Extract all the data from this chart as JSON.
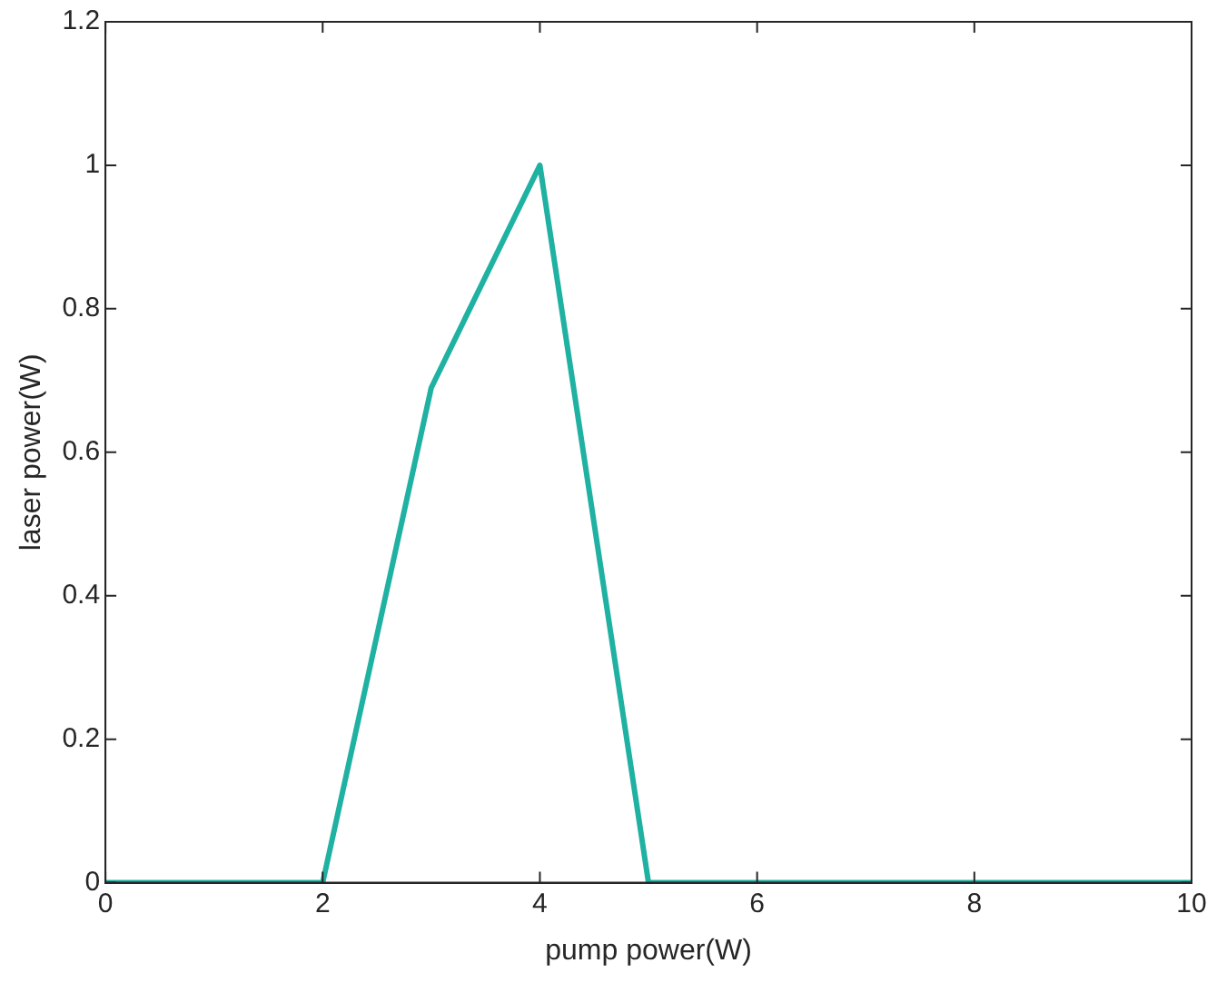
{
  "chart_data": {
    "type": "line",
    "xlabel": "pump power(W)",
    "ylabel": "laser power(W)",
    "x": [
      0,
      1,
      2,
      3,
      4,
      5,
      6,
      7,
      8,
      9,
      10
    ],
    "series": [
      {
        "color": "#1fb1a1",
        "values": [
          0,
          0,
          0,
          0.69,
          1,
          0,
          0,
          0,
          0,
          0,
          0
        ]
      }
    ],
    "xlim": [
      0,
      10
    ],
    "xticks": [
      0,
      2,
      4,
      6,
      8,
      10
    ],
    "ylim": [
      0,
      1.2
    ],
    "yticks": [
      0,
      0.2,
      0.4,
      0.6,
      0.8,
      1,
      1.2
    ],
    "grid": false,
    "legend": false,
    "marker": "none",
    "line_style": "solid"
  }
}
